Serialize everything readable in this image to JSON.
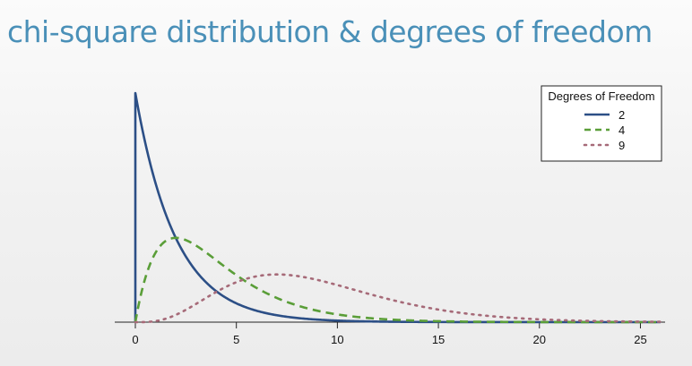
{
  "slide": {
    "title": "chi-square distribution & degrees of freedom"
  },
  "chart_data": {
    "type": "line",
    "title": "",
    "xlabel": "",
    "ylabel": "",
    "xlim": [
      0,
      26
    ],
    "ylim": [
      0,
      0.5
    ],
    "x_ticks": [
      0,
      5,
      10,
      15,
      20,
      25
    ],
    "grid": false,
    "legend": {
      "title": "Degrees of Freedom",
      "position": "top-right"
    },
    "series": [
      {
        "name": "2",
        "df": 2,
        "color": "#2c4f86",
        "style": "solid",
        "x": [
          0,
          0.5,
          1,
          2,
          3,
          4,
          5,
          6,
          8,
          10,
          15,
          20,
          25,
          26
        ],
        "y": [
          0.5,
          0.389,
          0.303,
          0.184,
          0.112,
          0.068,
          0.041,
          0.025,
          0.009,
          0.003,
          0.0003,
          2e-05,
          2e-06,
          1e-06
        ]
      },
      {
        "name": "4",
        "df": 4,
        "color": "#5a9e38",
        "style": "dashed",
        "x": [
          0,
          0.5,
          1,
          2,
          3,
          4,
          5,
          6,
          8,
          10,
          15,
          20,
          25,
          26
        ],
        "y": [
          0,
          0.097,
          0.152,
          0.184,
          0.167,
          0.135,
          0.103,
          0.075,
          0.037,
          0.017,
          0.002,
          0.0005,
          5e-05,
          3e-05
        ]
      },
      {
        "name": "9",
        "df": 9,
        "color": "#a66a78",
        "style": "dotted",
        "x": [
          0,
          1,
          2,
          3,
          4,
          5,
          6,
          7,
          8,
          10,
          12,
          15,
          20,
          25,
          26
        ],
        "y": [
          0,
          0.001,
          0.009,
          0.032,
          0.064,
          0.092,
          0.108,
          0.112,
          0.107,
          0.082,
          0.055,
          0.024,
          0.004,
          0.0006,
          0.0004
        ]
      }
    ]
  }
}
